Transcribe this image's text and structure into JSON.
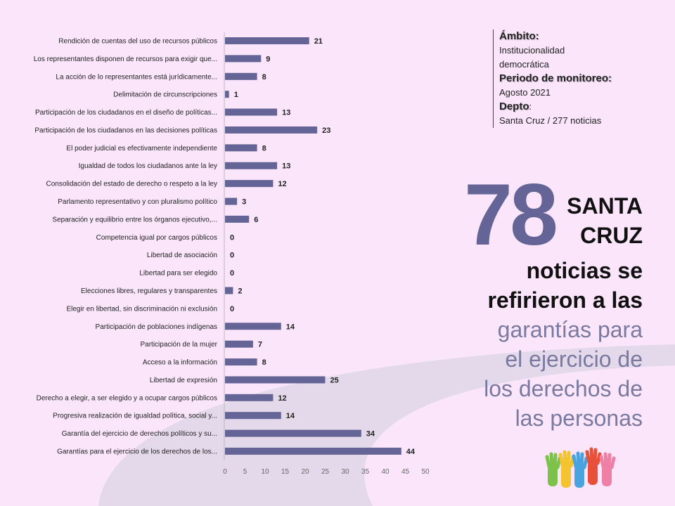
{
  "chart_data": {
    "type": "bar",
    "orientation": "horizontal",
    "categories": [
      "Rendición de cuentas del uso de recursos públicos",
      "Los representantes disponen de recursos para exigir que...",
      "La acción de lo representantes está jurídicamente...",
      "Delimitación de circunscripciones",
      "Participación de los ciudadanos en el diseño de políticas...",
      "Participación de los ciudadanos en las decisiones políticas",
      "El poder judicial es efectivamente independiente",
      "Igualdad de todos los ciudadanos ante la ley",
      "Consolidación del estado de derecho o respeto a la ley",
      "Parlamento representativo y con pluralismo político",
      "Separación y equilibrio entre los órganos ejecutivo,...",
      "Competencia igual por cargos públicos",
      "Libertad de asociación",
      "Libertad para ser elegido",
      "Elecciones libres, regulares y transparentes",
      "Elegir en libertad, sin discriminación ni exclusión",
      "Participación de poblaciones indígenas",
      "Participación de la mujer",
      "Acceso a la información",
      "Libertad de expresión",
      "Derecho a elegir, a ser elegido y a ocupar cargos públicos",
      "Progresiva realización de igualdad política, social y...",
      "Garantía del ejercicio de derechos políticos y su...",
      "Garantías para el ejercicio de los derechos de los..."
    ],
    "values": [
      21,
      9,
      8,
      1,
      13,
      23,
      8,
      13,
      12,
      3,
      6,
      0,
      0,
      0,
      2,
      0,
      14,
      7,
      8,
      25,
      12,
      14,
      34,
      44
    ],
    "xlim": [
      0,
      50
    ],
    "xticks": [
      0,
      5,
      10,
      15,
      20,
      25,
      30,
      35,
      40,
      45,
      50
    ],
    "bar_color": "#646496",
    "grid": false
  },
  "info": {
    "ambito_label": "Ámbito:",
    "ambito_value_1": "Institucionalidad",
    "ambito_value_2": "democrática",
    "periodo_label": "Periodo de monitoreo:",
    "periodo_value": "Agosto 2021",
    "depto_label": "Depto",
    "depto_colon": ":",
    "depto_value": "Santa Cruz / 277 noticias"
  },
  "headline": {
    "number": "78",
    "region_1": "SANTA",
    "region_2": "CRUZ",
    "line_1": "noticias se",
    "line_2": "refirieron a las",
    "line_3": "garantías para",
    "line_4": "el ejercicio de",
    "line_5": "los derechos de",
    "line_6": "las personas"
  },
  "colors": {
    "background": "#fae5fa",
    "accent": "#646496",
    "highlight_text": "#7a7aa0"
  }
}
